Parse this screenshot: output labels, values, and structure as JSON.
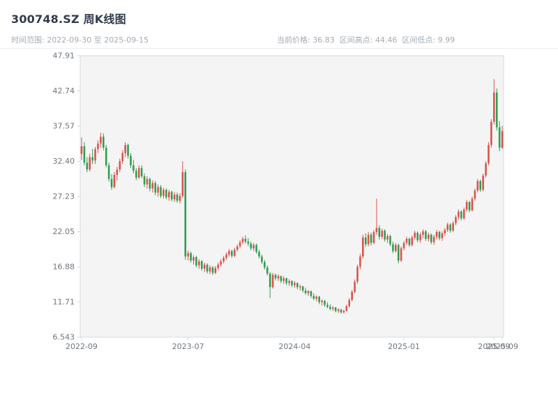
{
  "header": {
    "title": "300748.SZ 周K线图",
    "subtitle_left": "时间范围: 2022-09-30 至 2025-09-15",
    "subtitle_right": "当前价格: 36.83  区间高点: 44.46  区间低点: 9.99"
  },
  "colors": {
    "up": "#d9534a",
    "down": "#2e9e4f",
    "plot_bg": "#f4f4f5",
    "border": "#d6dade",
    "axis": "#6e767f",
    "title": "#313b4b",
    "subtitle": "#a4abb2"
  },
  "chart_data": {
    "type": "candlestick",
    "title": "300748.SZ 周K线图",
    "symbol": "300748.SZ",
    "interval": "weekly",
    "date_range": {
      "start": "2022-09-30",
      "end": "2025-09-15"
    },
    "current_price": 36.83,
    "range_high": 44.46,
    "range_low": 9.99,
    "ylim": [
      6.543,
      47.91
    ],
    "grid": false,
    "y_ticks": [
      {
        "value": 47.91,
        "label": "47.91"
      },
      {
        "value": 42.74,
        "label": "42.74"
      },
      {
        "value": 37.57,
        "label": "37.57"
      },
      {
        "value": 32.4,
        "label": "32.40"
      },
      {
        "value": 27.23,
        "label": "27.23"
      },
      {
        "value": 22.05,
        "label": "22.05"
      },
      {
        "value": 16.88,
        "label": "16.88"
      },
      {
        "value": 11.71,
        "label": "11.71"
      },
      {
        "value": 6.543,
        "label": "6.543"
      }
    ],
    "x_ticks": [
      {
        "index": 0,
        "label": "2022-09"
      },
      {
        "index": 39,
        "label": "2023-07"
      },
      {
        "index": 78,
        "label": "2024-04"
      },
      {
        "index": 118,
        "label": "2025-01"
      },
      {
        "index": 151,
        "label": "2025-09"
      },
      {
        "index": 154,
        "label": "2025-09"
      }
    ],
    "candles": [
      [
        33.5,
        35.9,
        32.6,
        34.6
      ],
      [
        34.6,
        35.2,
        31.8,
        32.2
      ],
      [
        32.2,
        33.0,
        30.8,
        31.2
      ],
      [
        31.2,
        33.5,
        30.9,
        33.0
      ],
      [
        33.0,
        34.2,
        32.0,
        32.5
      ],
      [
        32.5,
        34.5,
        32.0,
        34.2
      ],
      [
        34.2,
        35.5,
        33.6,
        35.0
      ],
      [
        35.0,
        36.6,
        34.4,
        36.0
      ],
      [
        36.0,
        36.5,
        34.0,
        34.4
      ],
      [
        34.4,
        34.8,
        31.5,
        31.8
      ],
      [
        31.8,
        32.2,
        29.4,
        29.8
      ],
      [
        29.8,
        30.5,
        28.2,
        28.6
      ],
      [
        28.6,
        30.8,
        28.4,
        30.4
      ],
      [
        30.4,
        31.6,
        29.6,
        31.2
      ],
      [
        31.2,
        32.8,
        30.8,
        32.4
      ],
      [
        32.4,
        34.0,
        32.0,
        33.6
      ],
      [
        33.6,
        35.2,
        33.0,
        34.8
      ],
      [
        34.8,
        35.0,
        32.8,
        33.2
      ],
      [
        33.2,
        33.6,
        31.4,
        31.8
      ],
      [
        31.8,
        32.6,
        30.6,
        31.0
      ],
      [
        31.0,
        31.4,
        29.6,
        30.0
      ],
      [
        30.0,
        31.8,
        29.8,
        31.4
      ],
      [
        31.4,
        31.8,
        29.9,
        30.2
      ],
      [
        30.2,
        30.6,
        28.6,
        29.0
      ],
      [
        29.0,
        30.2,
        28.4,
        29.8
      ],
      [
        29.8,
        30.0,
        28.0,
        28.4
      ],
      [
        28.4,
        29.6,
        27.8,
        29.2
      ],
      [
        29.2,
        29.5,
        27.4,
        27.8
      ],
      [
        27.8,
        29.0,
        27.2,
        28.6
      ],
      [
        28.6,
        28.9,
        27.0,
        27.3
      ],
      [
        27.3,
        28.5,
        26.9,
        28.2
      ],
      [
        28.2,
        28.4,
        26.8,
        27.1
      ],
      [
        27.1,
        28.2,
        26.6,
        27.9
      ],
      [
        27.9,
        28.1,
        26.5,
        26.8
      ],
      [
        26.8,
        27.9,
        26.4,
        27.5
      ],
      [
        27.5,
        27.8,
        26.3,
        26.6
      ],
      [
        26.6,
        27.7,
        26.2,
        27.3
      ],
      [
        27.3,
        32.4,
        27.0,
        30.8
      ],
      [
        30.8,
        31.2,
        17.9,
        18.4
      ],
      [
        18.4,
        19.3,
        17.8,
        18.9
      ],
      [
        18.9,
        19.1,
        17.5,
        17.8
      ],
      [
        17.8,
        18.6,
        17.2,
        18.3
      ],
      [
        18.3,
        18.5,
        16.8,
        17.1
      ],
      [
        17.1,
        18.0,
        16.6,
        17.7
      ],
      [
        17.7,
        17.9,
        16.3,
        16.6
      ],
      [
        16.6,
        17.5,
        16.1,
        17.2
      ],
      [
        17.2,
        17.4,
        15.9,
        16.2
      ],
      [
        16.2,
        17.1,
        15.8,
        16.8
      ],
      [
        16.8,
        17.0,
        15.7,
        16.0
      ],
      [
        16.0,
        17.0,
        15.8,
        16.7
      ],
      [
        16.7,
        17.5,
        16.4,
        17.2
      ],
      [
        17.2,
        18.0,
        16.9,
        17.7
      ],
      [
        17.7,
        18.5,
        17.4,
        18.2
      ],
      [
        18.2,
        19.0,
        17.9,
        18.7
      ],
      [
        18.7,
        19.5,
        18.4,
        19.2
      ],
      [
        19.2,
        19.4,
        18.2,
        18.5
      ],
      [
        18.5,
        19.7,
        18.3,
        19.4
      ],
      [
        19.4,
        20.2,
        19.1,
        19.9
      ],
      [
        19.9,
        20.8,
        19.6,
        20.5
      ],
      [
        20.5,
        21.3,
        20.2,
        21.0
      ],
      [
        21.0,
        21.5,
        20.3,
        20.6
      ],
      [
        20.6,
        21.1,
        19.9,
        20.3
      ],
      [
        20.3,
        20.6,
        19.3,
        19.6
      ],
      [
        19.6,
        20.4,
        19.2,
        20.1
      ],
      [
        20.1,
        20.3,
        18.8,
        19.1
      ],
      [
        19.1,
        19.4,
        18.1,
        18.4
      ],
      [
        18.4,
        18.7,
        17.3,
        17.6
      ],
      [
        17.6,
        17.9,
        16.5,
        16.8
      ],
      [
        16.8,
        17.1,
        15.6,
        15.9
      ],
      [
        15.9,
        16.1,
        12.3,
        13.9
      ],
      [
        13.9,
        16.0,
        13.7,
        15.7
      ],
      [
        15.7,
        15.9,
        14.9,
        15.2
      ],
      [
        15.2,
        15.8,
        14.8,
        15.5
      ],
      [
        15.5,
        15.6,
        14.5,
        14.8
      ],
      [
        14.8,
        15.5,
        14.4,
        15.2
      ],
      [
        15.2,
        15.3,
        14.2,
        14.5
      ],
      [
        14.5,
        15.1,
        14.1,
        14.8
      ],
      [
        14.8,
        14.9,
        13.9,
        14.2
      ],
      [
        14.2,
        14.8,
        13.8,
        14.5
      ],
      [
        14.5,
        14.6,
        13.6,
        13.9
      ],
      [
        13.9,
        14.3,
        13.4,
        14.0
      ],
      [
        14.0,
        14.1,
        13.1,
        13.4
      ],
      [
        13.4,
        13.8,
        12.8,
        13.0
      ],
      [
        13.0,
        13.5,
        12.6,
        13.3
      ],
      [
        13.3,
        13.4,
        12.3,
        12.6
      ],
      [
        12.6,
        13.0,
        12.0,
        12.2
      ],
      [
        12.2,
        12.7,
        11.8,
        12.5
      ],
      [
        12.5,
        12.6,
        11.4,
        11.7
      ],
      [
        11.7,
        12.1,
        11.2,
        11.9
      ],
      [
        11.9,
        12.0,
        11.0,
        11.3
      ],
      [
        11.3,
        11.7,
        10.8,
        11.0
      ],
      [
        11.0,
        11.4,
        10.5,
        10.7
      ],
      [
        10.7,
        11.1,
        10.4,
        10.9
      ],
      [
        10.9,
        11.0,
        10.2,
        10.4
      ],
      [
        10.4,
        10.8,
        10.1,
        10.6
      ],
      [
        10.6,
        10.7,
        9.99,
        10.2
      ],
      [
        10.2,
        10.6,
        10.0,
        10.4
      ],
      [
        10.4,
        11.3,
        10.3,
        11.1
      ],
      [
        11.1,
        12.3,
        10.9,
        12.0
      ],
      [
        12.0,
        13.5,
        11.8,
        13.2
      ],
      [
        13.2,
        15.0,
        13.0,
        14.7
      ],
      [
        14.7,
        17.2,
        14.4,
        16.9
      ],
      [
        16.9,
        18.8,
        16.5,
        18.4
      ],
      [
        18.4,
        21.6,
        18.1,
        21.2
      ],
      [
        21.2,
        21.8,
        19.8,
        20.2
      ],
      [
        20.2,
        22.0,
        19.9,
        21.6
      ],
      [
        21.6,
        21.9,
        20.0,
        20.4
      ],
      [
        20.4,
        22.3,
        20.2,
        22.0
      ],
      [
        22.0,
        26.9,
        21.6,
        22.6
      ],
      [
        22.6,
        23.0,
        20.9,
        21.3
      ],
      [
        21.3,
        22.5,
        21.0,
        22.2
      ],
      [
        22.2,
        22.4,
        20.6,
        20.9
      ],
      [
        20.9,
        21.7,
        20.4,
        21.4
      ],
      [
        21.4,
        21.6,
        19.9,
        20.2
      ],
      [
        20.2,
        20.6,
        18.9,
        19.2
      ],
      [
        19.2,
        20.4,
        19.0,
        20.1
      ],
      [
        20.1,
        20.3,
        17.4,
        17.8
      ],
      [
        17.8,
        19.9,
        17.6,
        19.6
      ],
      [
        19.6,
        20.7,
        19.3,
        20.4
      ],
      [
        20.4,
        21.3,
        20.1,
        21.0
      ],
      [
        21.0,
        21.2,
        19.8,
        20.1
      ],
      [
        20.1,
        21.5,
        19.9,
        21.2
      ],
      [
        21.2,
        22.2,
        20.9,
        21.9
      ],
      [
        21.9,
        22.1,
        20.5,
        20.8
      ],
      [
        20.8,
        21.9,
        20.4,
        21.6
      ],
      [
        21.6,
        22.4,
        21.1,
        22.1
      ],
      [
        22.1,
        22.3,
        20.7,
        21.0
      ],
      [
        21.0,
        21.9,
        20.6,
        21.6
      ],
      [
        21.6,
        21.8,
        20.2,
        20.5
      ],
      [
        20.5,
        21.6,
        20.1,
        21.3
      ],
      [
        21.3,
        22.3,
        20.9,
        22.0
      ],
      [
        22.0,
        22.2,
        20.8,
        21.1
      ],
      [
        21.1,
        22.1,
        20.7,
        21.8
      ],
      [
        21.8,
        22.6,
        21.4,
        22.3
      ],
      [
        22.3,
        23.4,
        22.0,
        23.1
      ],
      [
        23.1,
        23.3,
        21.9,
        22.2
      ],
      [
        22.2,
        23.6,
        22.0,
        23.3
      ],
      [
        23.3,
        24.5,
        23.0,
        24.2
      ],
      [
        24.2,
        25.3,
        23.8,
        25.0
      ],
      [
        25.0,
        25.2,
        23.7,
        24.0
      ],
      [
        24.0,
        25.6,
        23.8,
        25.3
      ],
      [
        25.3,
        26.7,
        25.0,
        26.4
      ],
      [
        26.4,
        26.6,
        24.9,
        25.2
      ],
      [
        25.2,
        27.2,
        25.0,
        26.9
      ],
      [
        26.9,
        28.4,
        26.6,
        28.1
      ],
      [
        28.1,
        29.8,
        27.8,
        29.5
      ],
      [
        29.5,
        29.7,
        27.9,
        28.2
      ],
      [
        28.2,
        30.6,
        28.0,
        30.3
      ],
      [
        30.3,
        32.4,
        30.0,
        32.1
      ],
      [
        32.1,
        35.2,
        31.8,
        34.8
      ],
      [
        34.8,
        38.6,
        34.4,
        38.2
      ],
      [
        38.2,
        44.46,
        37.8,
        42.5
      ],
      [
        42.5,
        43.1,
        36.9,
        37.4
      ],
      [
        37.4,
        38.3,
        33.9,
        34.4
      ],
      [
        34.4,
        37.6,
        34.2,
        36.83
      ]
    ]
  }
}
